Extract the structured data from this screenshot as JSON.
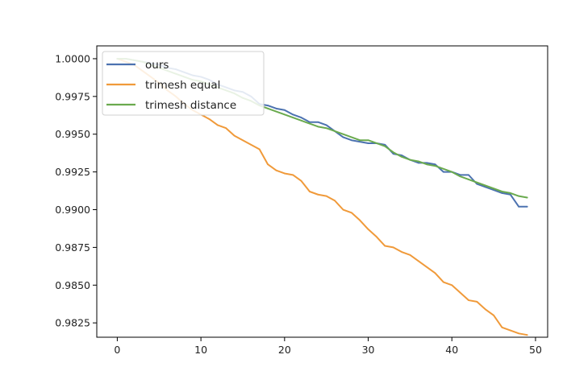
{
  "chart_data": {
    "type": "line",
    "title": "",
    "xlabel": "",
    "ylabel": "",
    "xlim": [
      -2.45,
      51.45
    ],
    "ylim": [
      0.98155,
      1.00085
    ],
    "xticks": [
      0,
      10,
      20,
      30,
      40,
      50
    ],
    "xtick_labels": [
      "0",
      "10",
      "20",
      "30",
      "40",
      "50"
    ],
    "yticks": [
      0.9825,
      0.985,
      0.9875,
      0.99,
      0.9925,
      0.995,
      0.9975,
      1.0
    ],
    "ytick_labels": [
      "0.9825",
      "0.9850",
      "0.9875",
      "0.9900",
      "0.9925",
      "0.9950",
      "0.9975",
      "1.0000"
    ],
    "grid": false,
    "legend_position": "top-left",
    "x": [
      0,
      1,
      2,
      3,
      4,
      5,
      6,
      7,
      8,
      9,
      10,
      11,
      12,
      13,
      14,
      15,
      16,
      17,
      18,
      19,
      20,
      21,
      22,
      23,
      24,
      25,
      26,
      27,
      28,
      29,
      30,
      31,
      32,
      33,
      34,
      35,
      36,
      37,
      38,
      39,
      40,
      41,
      42,
      43,
      44,
      45,
      46,
      47,
      48,
      49
    ],
    "series": [
      {
        "name": "ours",
        "color": "#4c72b0",
        "values": [
          1.0,
          1.0,
          0.9999,
          0.9998,
          0.9997,
          0.9996,
          0.9994,
          0.9993,
          0.9991,
          0.9989,
          0.9988,
          0.9986,
          0.9983,
          0.9981,
          0.9979,
          0.9978,
          0.9975,
          0.997,
          0.9969,
          0.9967,
          0.9966,
          0.9963,
          0.9961,
          0.9958,
          0.9958,
          0.9956,
          0.9952,
          0.9948,
          0.9946,
          0.9945,
          0.9944,
          0.9944,
          0.9943,
          0.9937,
          0.9936,
          0.9933,
          0.9931,
          0.9931,
          0.993,
          0.9925,
          0.9925,
          0.9923,
          0.9923,
          0.9917,
          0.9915,
          0.9913,
          0.9911,
          0.991,
          0.9902,
          0.9902
        ]
      },
      {
        "name": "trimesh equal",
        "color": "#f09a3a",
        "values": [
          1.0,
          0.9998,
          0.9996,
          0.9992,
          0.9988,
          0.9984,
          0.9979,
          0.9975,
          0.997,
          0.9966,
          0.9963,
          0.996,
          0.9956,
          0.9954,
          0.9949,
          0.9946,
          0.9943,
          0.994,
          0.993,
          0.9926,
          0.9924,
          0.9923,
          0.9919,
          0.9912,
          0.991,
          0.9909,
          0.9906,
          0.99,
          0.9898,
          0.9893,
          0.9887,
          0.9882,
          0.9876,
          0.9875,
          0.9872,
          0.987,
          0.9866,
          0.9862,
          0.9858,
          0.9852,
          0.985,
          0.9845,
          0.984,
          0.9839,
          0.9834,
          0.983,
          0.9822,
          0.982,
          0.9818,
          0.9817
        ]
      },
      {
        "name": "trimesh distance",
        "color": "#6aaa4e",
        "values": [
          1.0,
          1.0,
          0.9999,
          0.9998,
          0.9996,
          0.9994,
          0.9992,
          0.999,
          0.9988,
          0.9986,
          0.9985,
          0.9983,
          0.9981,
          0.9979,
          0.9977,
          0.9974,
          0.9972,
          0.9969,
          0.9967,
          0.9965,
          0.9963,
          0.9961,
          0.9959,
          0.9957,
          0.9955,
          0.9954,
          0.9952,
          0.995,
          0.9948,
          0.9946,
          0.9946,
          0.9944,
          0.9942,
          0.9938,
          0.9935,
          0.9933,
          0.9932,
          0.993,
          0.9929,
          0.9927,
          0.9925,
          0.9922,
          0.992,
          0.9918,
          0.9916,
          0.9914,
          0.9912,
          0.9911,
          0.9909,
          0.9908
        ]
      }
    ]
  }
}
